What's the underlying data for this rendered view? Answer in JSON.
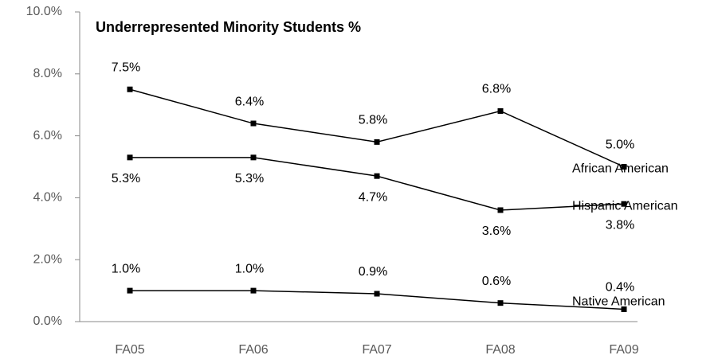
{
  "chart_data": {
    "type": "line",
    "title": "Underrepresented Minority Students %",
    "categories": [
      "FA05",
      "FA06",
      "FA07",
      "FA08",
      "FA09"
    ],
    "series": [
      {
        "name": "African American",
        "color": "#000000",
        "values": [
          7.5,
          6.4,
          5.8,
          6.8,
          5.0
        ],
        "value_labels": [
          "7.5%",
          "6.4%",
          "5.8%",
          "6.8%",
          "5.0%"
        ]
      },
      {
        "name": "Hispanic American",
        "color": "#000000",
        "values": [
          5.3,
          5.3,
          4.7,
          3.6,
          3.8
        ],
        "value_labels": [
          "5.3%",
          "5.3%",
          "4.7%",
          "3.6%",
          "3.8%"
        ]
      },
      {
        "name": "Native American",
        "color": "#000000",
        "values": [
          1.0,
          1.0,
          0.9,
          0.6,
          0.4
        ],
        "value_labels": [
          "1.0%",
          "1.0%",
          "0.9%",
          "0.6%",
          "0.4%"
        ]
      }
    ],
    "ylim": [
      0,
      10
    ],
    "yticks": [
      {
        "value": 0,
        "label": "0.0%"
      },
      {
        "value": 2,
        "label": "2.0%"
      },
      {
        "value": 4,
        "label": "4.0%"
      },
      {
        "value": 6,
        "label": "6.0%"
      },
      {
        "value": 8,
        "label": "8.0%"
      },
      {
        "value": 10,
        "label": "10.0%"
      }
    ]
  }
}
